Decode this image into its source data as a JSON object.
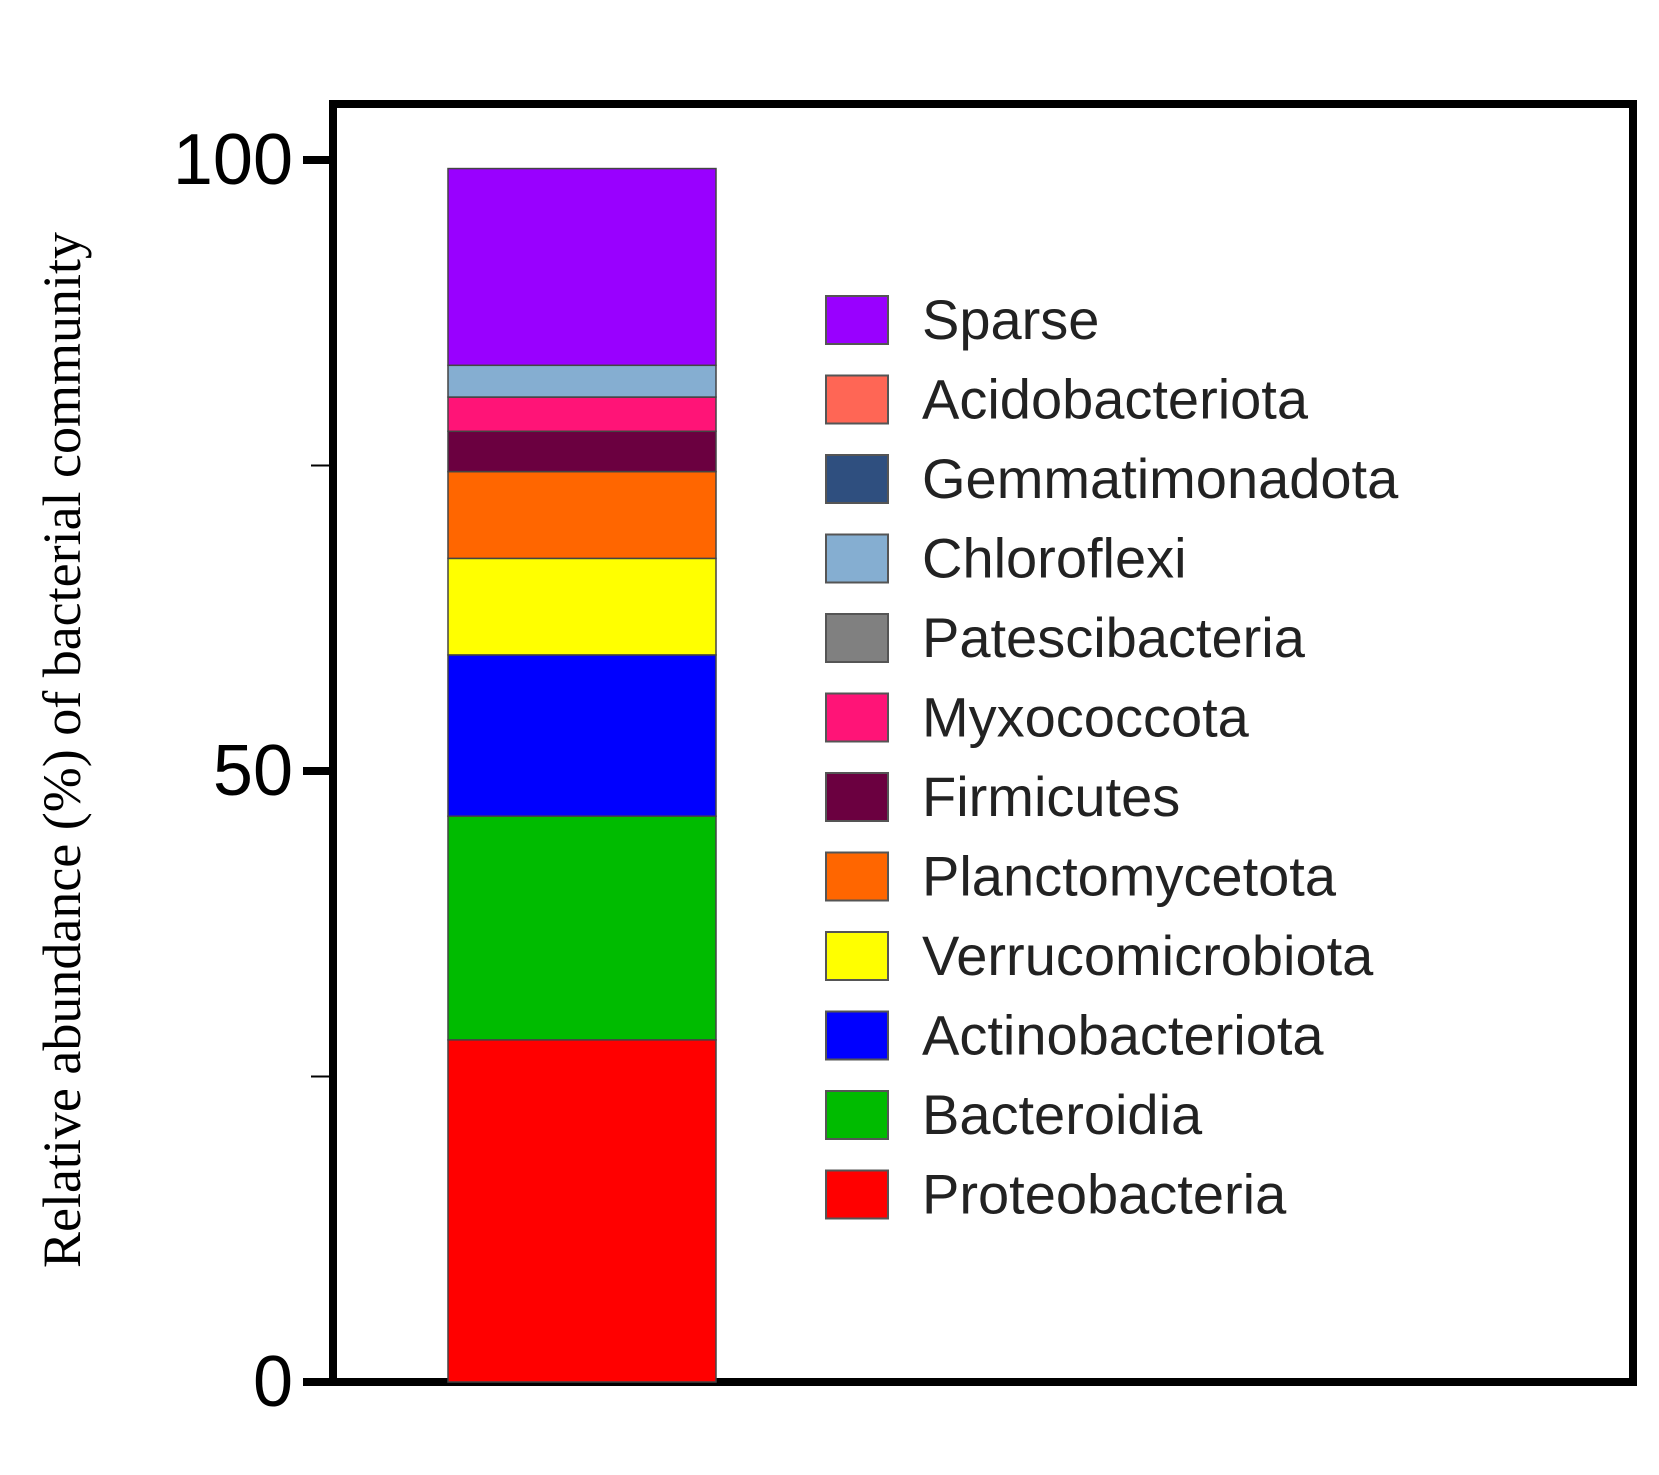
{
  "chart_data": {
    "type": "bar",
    "stacked": true,
    "categories": [
      ""
    ],
    "ylabel": "Relative abundance (%) of bacterial community",
    "ylim": [
      0,
      100
    ],
    "yticks": [
      {
        "value": 0,
        "label": "0"
      },
      {
        "value": 50,
        "label": "50"
      },
      {
        "value": 100,
        "label": "100"
      }
    ],
    "minor_ticks": [
      25,
      75
    ],
    "legend_position": "right, inside plot",
    "series": [
      {
        "name": "Proteobacteria",
        "values": [
          28.0
        ],
        "color": "#ff0000"
      },
      {
        "name": "Bacteroidia",
        "values": [
          18.3
        ],
        "color": "#00bb00"
      },
      {
        "name": "Actinobacteriota",
        "values": [
          13.2
        ],
        "color": "#0000ff"
      },
      {
        "name": "Verrucomicrobiota",
        "values": [
          7.9
        ],
        "color": "#ffff00"
      },
      {
        "name": "Planctomycetota",
        "values": [
          7.1
        ],
        "color": "#ff6600"
      },
      {
        "name": "Firmicutes",
        "values": [
          3.3
        ],
        "color": "#6b0040"
      },
      {
        "name": "Myxococcota",
        "values": [
          2.8
        ],
        "color": "#ff1477"
      },
      {
        "name": "Patescibacteria",
        "values": [
          0.0
        ],
        "color": "#808080"
      },
      {
        "name": "Chloroflexi",
        "values": [
          2.6
        ],
        "color": "#85aed1"
      },
      {
        "name": "Gemmatimonadota",
        "values": [
          0.0
        ],
        "color": "#2f4f7f"
      },
      {
        "name": "Acidobacteriota",
        "values": [
          0.0
        ],
        "color": "#ff6655"
      },
      {
        "name": "Sparse",
        "values": [
          16.1
        ],
        "color": "#9900ff"
      }
    ],
    "legend_order": [
      "Sparse",
      "Acidobacteriota",
      "Gemmatimonadota",
      "Chloroflexi",
      "Patescibacteria",
      "Myxococcota",
      "Firmicutes",
      "Planctomycetota",
      "Verrucomicrobiota",
      "Actinobacteriota",
      "Bacteroidia",
      "Proteobacteria"
    ]
  }
}
